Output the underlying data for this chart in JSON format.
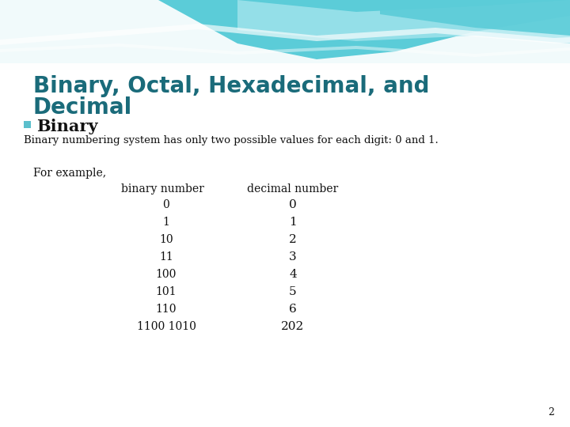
{
  "title_line1": "Binary, Octal, Hexadecimal, and",
  "title_line2": "Decimal",
  "title_color": "#1a6b7a",
  "bullet_label": "Binary",
  "bullet_square_color": "#5bbfcc",
  "description": "Binary numbering system has only two possible values for each digit: 0 and 1.",
  "for_example": "For example,",
  "col1_header": "binary number",
  "col2_header": "decimal number",
  "binary_numbers": [
    "0",
    "1",
    "10",
    "11",
    "100",
    "101",
    "110",
    "1100 1010"
  ],
  "decimal_numbers": [
    "0",
    "1",
    "2",
    "3",
    "4",
    "5",
    "6",
    "202"
  ],
  "page_number": "2",
  "bg_color": "#ffffff",
  "slide_bg": "#f4fbfc",
  "wave_teal": "#5bccd8",
  "wave_light": "#a8e6ee",
  "wave_white": "#e8f8fa",
  "text_color": "#111111"
}
